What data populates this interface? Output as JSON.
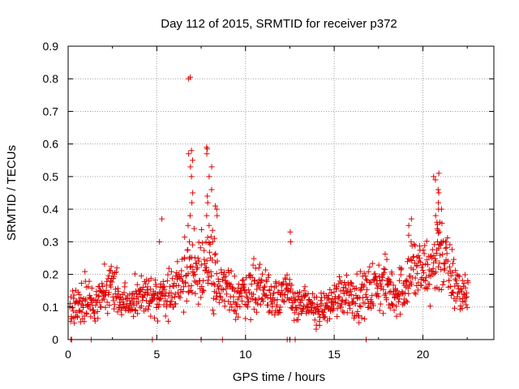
{
  "chart_data": {
    "type": "scatter",
    "title": "Day 112 of 2015, SRMTID for receiver p372",
    "xlabel": "GPS time / hours",
    "ylabel": "SRMTID / TECUs",
    "xlim": [
      0,
      24
    ],
    "ylim": [
      0,
      0.9
    ],
    "xticks": [
      0,
      5,
      10,
      15,
      20
    ],
    "yticks": [
      0,
      0.1,
      0.2,
      0.3,
      0.4,
      0.5,
      0.6,
      0.7,
      0.8,
      0.9
    ],
    "xtick_labels": [
      "0",
      "5",
      "10",
      "15",
      "20"
    ],
    "ytick_labels": [
      "0",
      "0.1",
      "0.2",
      "0.3",
      "0.4",
      "0.5",
      "0.6",
      "0.7",
      "0.8",
      "0.9"
    ],
    "grid": true,
    "marker": "+",
    "colors": {
      "points": "#e00000",
      "grid": "#a0a0a0",
      "axis": "#000000"
    },
    "series": [
      {
        "name": "SRMTID",
        "x_start": 0.1,
        "x_end": 22.55,
        "trend": [
          [
            0.1,
            0.09
          ],
          [
            0.5,
            0.11
          ],
          [
            1,
            0.13
          ],
          [
            1.5,
            0.12
          ],
          [
            2,
            0.14
          ],
          [
            2.5,
            0.16
          ],
          [
            3,
            0.11
          ],
          [
            3.5,
            0.12
          ],
          [
            4,
            0.14
          ],
          [
            4.5,
            0.13
          ],
          [
            5,
            0.12
          ],
          [
            5.5,
            0.14
          ],
          [
            6,
            0.16
          ],
          [
            6.5,
            0.2
          ],
          [
            7,
            0.22
          ],
          [
            7.5,
            0.24
          ],
          [
            8,
            0.22
          ],
          [
            8.5,
            0.17
          ],
          [
            9,
            0.14
          ],
          [
            9.5,
            0.13
          ],
          [
            10,
            0.15
          ],
          [
            10.5,
            0.17
          ],
          [
            11,
            0.16
          ],
          [
            11.5,
            0.13
          ],
          [
            12,
            0.15
          ],
          [
            12.5,
            0.13
          ],
          [
            13,
            0.11
          ],
          [
            13.5,
            0.1
          ],
          [
            14,
            0.09
          ],
          [
            14.5,
            0.1
          ],
          [
            15,
            0.12
          ],
          [
            15.5,
            0.15
          ],
          [
            16,
            0.14
          ],
          [
            16.5,
            0.13
          ],
          [
            17,
            0.15
          ],
          [
            17.5,
            0.17
          ],
          [
            18,
            0.16
          ],
          [
            18.5,
            0.14
          ],
          [
            19,
            0.17
          ],
          [
            19.5,
            0.22
          ],
          [
            20,
            0.2
          ],
          [
            20.5,
            0.22
          ],
          [
            21,
            0.28
          ],
          [
            21.5,
            0.2
          ],
          [
            22,
            0.15
          ],
          [
            22.55,
            0.14
          ]
        ],
        "spikes": [
          {
            "x": 6.9,
            "values": [
              0.8,
              0.805,
              0.58,
              0.57,
              0.55,
              0.53,
              0.5,
              0.45,
              0.42,
              0.38,
              0.35,
              0.3
            ]
          },
          {
            "x": 7.95,
            "values": [
              0.59,
              0.585,
              0.57,
              0.53,
              0.5,
              0.46,
              0.44,
              0.42,
              0.38,
              0.35
            ]
          },
          {
            "x": 8.3,
            "values": [
              0.41,
              0.4,
              0.38,
              0.31,
              0.3
            ]
          },
          {
            "x": 5.2,
            "values": [
              0.37,
              0.3
            ]
          },
          {
            "x": 12.45,
            "values": [
              0.33,
              0.3
            ]
          },
          {
            "x": 19.3,
            "values": [
              0.37,
              0.35,
              0.32,
              0.3
            ]
          },
          {
            "x": 20.75,
            "values": [
              0.51,
              0.5,
              0.49,
              0.46,
              0.42,
              0.4,
              0.38,
              0.36,
              0.34,
              0.3,
              0.28
            ]
          },
          {
            "x": 20.95,
            "values": [
              0.45,
              0.4,
              0.36,
              0.33,
              0.3
            ]
          }
        ],
        "zeros": [
          0.15,
          0.2,
          1.3,
          4.75,
          7.5,
          8.7,
          12.35,
          12.5,
          12.8,
          16.8
        ]
      }
    ]
  }
}
